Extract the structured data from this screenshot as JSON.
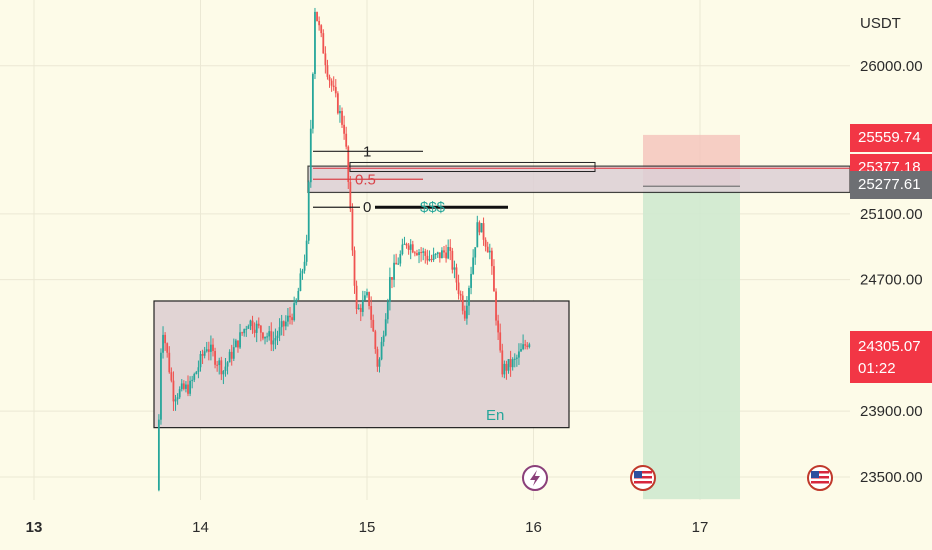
{
  "axis": {
    "currency": "USDT",
    "price_ticks": [
      "26000.00",
      "25100.00",
      "24700.00",
      "23900.00",
      "23500.00"
    ],
    "date_ticks": [
      "13",
      "14",
      "15",
      "16",
      "17"
    ]
  },
  "price_tags": {
    "target": "25559.74",
    "stop": "25377.18",
    "entry": "25277.61",
    "last": "24305.07",
    "countdown": "01:22"
  },
  "annotations": {
    "fib_1": "1",
    "fib_05": "0.5",
    "fib_0": "0",
    "liquidity": "$$$",
    "en": "En"
  },
  "icons": [
    "lightning-event-icon",
    "us-flag-event-icon",
    "us-flag-event-icon"
  ],
  "colors": {
    "background": "#fdfbe8",
    "up": "#26a69a",
    "down": "#ef5350",
    "zone": "#e1d4d4",
    "short_stop_zone": "#f5c6bd",
    "short_target_zone": "#cfe9cf",
    "entry_tag": "#6d6f73",
    "sell_tag": "#f23645"
  },
  "chart_data": {
    "type": "candlestick",
    "symbol_unit": "USDT",
    "x_ticks": [
      "13",
      "14",
      "15",
      "16",
      "17"
    ],
    "y_ticks": [
      26000.0,
      25100.0,
      24700.0,
      23900.0,
      23500.0
    ],
    "ylim": [
      23360,
      26400
    ],
    "grid": true,
    "last_price": 24305.07,
    "levels": {
      "target": 25559.74,
      "stop": 25377.18,
      "entry": 25277.61
    },
    "zones": [
      {
        "name": "demand",
        "low": 23800,
        "high": 24570
      },
      {
        "name": "supply",
        "low": 25230,
        "high": 25390
      }
    ],
    "fib": {
      "1": 25480,
      "0.5": 25310,
      "0": 25140
    },
    "price_path": [
      [
        13.75,
        23420
      ],
      [
        13.78,
        24450
      ],
      [
        13.85,
        24000
      ],
      [
        13.95,
        24050
      ],
      [
        14.05,
        24300
      ],
      [
        14.15,
        24150
      ],
      [
        14.3,
        24450
      ],
      [
        14.45,
        24330
      ],
      [
        14.58,
        24520
      ],
      [
        14.65,
        24900
      ],
      [
        14.7,
        26350
      ],
      [
        14.78,
        25950
      ],
      [
        14.88,
        25600
      ],
      [
        14.95,
        24500
      ],
      [
        15.02,
        24600
      ],
      [
        15.08,
        24150
      ],
      [
        15.15,
        24700
      ],
      [
        15.25,
        24930
      ],
      [
        15.4,
        24820
      ],
      [
        15.5,
        24880
      ],
      [
        15.6,
        24500
      ],
      [
        15.68,
        25050
      ],
      [
        15.75,
        24870
      ],
      [
        15.82,
        24150
      ],
      [
        15.9,
        24200
      ],
      [
        15.98,
        24330
      ]
    ]
  }
}
